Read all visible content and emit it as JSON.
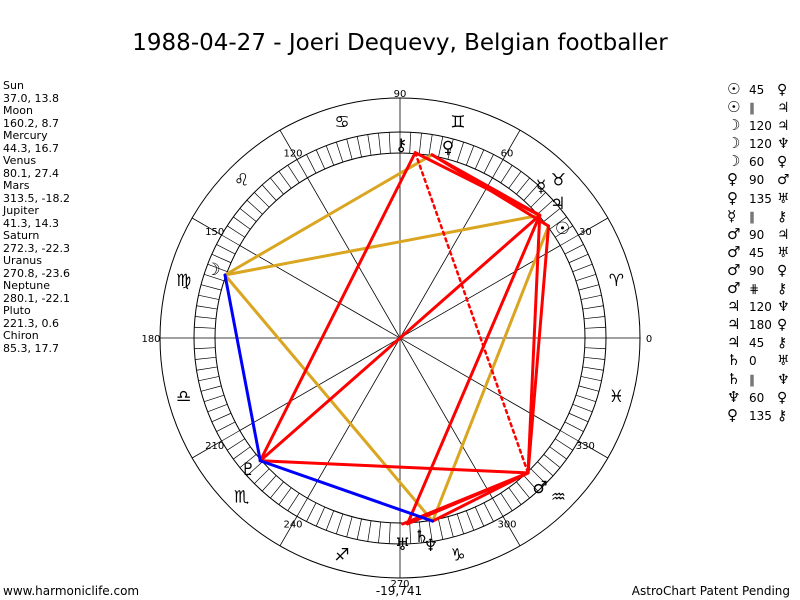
{
  "title": "1988-04-27 - Joeri Dequevy, Belgian footballer",
  "footer_left": "www.harmoniclife.com",
  "footer_right": "AstroChart Patent Pending",
  "planets": [
    {
      "name": "Sun",
      "coords": "37.0, 13.8",
      "lon": 37.0,
      "glyph": "☉"
    },
    {
      "name": "Moon",
      "coords": "160.2, 8.7",
      "lon": 160.2,
      "glyph": "☽"
    },
    {
      "name": "Mercury",
      "coords": "44.3, 16.7",
      "lon": 44.3,
      "glyph": "☿"
    },
    {
      "name": "Venus",
      "coords": "80.1, 27.4",
      "lon": 80.1,
      "glyph": "♀"
    },
    {
      "name": "Mars",
      "coords": "313.5, -18.2",
      "lon": 313.5,
      "glyph": "♂"
    },
    {
      "name": "Jupiter",
      "coords": "41.3, 14.3",
      "lon": 41.3,
      "glyph": "♃"
    },
    {
      "name": "Saturn",
      "coords": "272.3, -22.3",
      "lon": 272.3,
      "glyph": "♄"
    },
    {
      "name": "Uranus",
      "coords": "270.8, -23.6",
      "lon": 270.8,
      "glyph": "♅"
    },
    {
      "name": "Neptune",
      "coords": "280.1, -22.1",
      "lon": 280.1,
      "glyph": "♆"
    },
    {
      "name": "Pluto",
      "coords": "221.3, 0.6",
      "lon": 221.3,
      "glyph": "♇"
    },
    {
      "name": "Chiron",
      "coords": "85.3, 17.7",
      "lon": 85.3,
      "glyph": "⚷"
    }
  ],
  "aspects": [
    {
      "p1": "☉",
      "angle": "45",
      "p2": "♀"
    },
    {
      "p1": "☉",
      "angle": "∥",
      "p2": "♃"
    },
    {
      "p1": "☽",
      "angle": "120",
      "p2": "♃"
    },
    {
      "p1": "☽",
      "angle": "120",
      "p2": "♆"
    },
    {
      "p1": "☽",
      "angle": "60",
      "p2": "♀"
    },
    {
      "p1": "♀",
      "angle": "90",
      "p2": "♂"
    },
    {
      "p1": "♀",
      "angle": "135",
      "p2": "♅"
    },
    {
      "p1": "☿",
      "angle": "∥",
      "p2": "⚷"
    },
    {
      "p1": "♂",
      "angle": "90",
      "p2": "♃"
    },
    {
      "p1": "♂",
      "angle": "45",
      "p2": "♅"
    },
    {
      "p1": "♂",
      "angle": "90",
      "p2": "♀"
    },
    {
      "p1": "♂",
      "angle": "⋕",
      "p2": "⚷"
    },
    {
      "p1": "♃",
      "angle": "120",
      "p2": "♆"
    },
    {
      "p1": "♃",
      "angle": "180",
      "p2": "♀"
    },
    {
      "p1": "♃",
      "angle": "45",
      "p2": "⚷"
    },
    {
      "p1": "♄",
      "angle": "0",
      "p2": "♅"
    },
    {
      "p1": "♄",
      "angle": "∥",
      "p2": "♆"
    },
    {
      "p1": "♆",
      "angle": "60",
      "p2": "♀"
    },
    {
      "p1": "♀",
      "angle": "135",
      "p2": "⚷"
    }
  ],
  "degree_labels": [
    "0",
    "30",
    "60",
    "90",
    "120",
    "150",
    "180",
    "210",
    "240",
    "270",
    "300",
    "330"
  ],
  "bottom_label": "-19,741",
  "zodiac_signs": [
    "♈",
    "♉",
    "♊",
    "♋",
    "♌",
    "♍",
    "♎",
    "♏",
    "♐",
    "♑",
    "♒",
    "♓"
  ],
  "colors": {
    "red": "#ff0000",
    "gold": "#daa520",
    "blue": "#0000ff"
  },
  "diagram_lines": [
    {
      "from": "Venus",
      "to": "Moon",
      "color": "gold",
      "style": "solid"
    },
    {
      "from": "Moon",
      "to": "Jupiter",
      "color": "gold",
      "style": "solid"
    },
    {
      "from": "Sun",
      "to": "Neptune",
      "color": "gold",
      "style": "solid"
    },
    {
      "from": "Moon",
      "to": "Neptune",
      "color": "gold",
      "style": "solid"
    },
    {
      "from": "Chiron",
      "to": "Mars",
      "color": "red",
      "style": "dotted"
    },
    {
      "from": "Chiron",
      "to": "Pluto",
      "color": "red",
      "style": "solid"
    },
    {
      "from": "Venus",
      "to": "Jupiter",
      "color": "red",
      "style": "solid"
    },
    {
      "from": "Chiron",
      "to": "Jupiter",
      "color": "red",
      "style": "solid"
    },
    {
      "from": "Jupiter",
      "to": "Pluto",
      "color": "red",
      "style": "solid"
    },
    {
      "from": "Jupiter",
      "to": "Mars",
      "color": "red",
      "style": "solid"
    },
    {
      "from": "Sun",
      "to": "Mars",
      "color": "red",
      "style": "solid"
    },
    {
      "from": "Jupiter",
      "to": "Saturn",
      "color": "red",
      "style": "solid"
    },
    {
      "from": "Pluto",
      "to": "Mars",
      "color": "red",
      "style": "solid"
    },
    {
      "from": "Mars",
      "to": "Neptune",
      "color": "red",
      "style": "solid"
    },
    {
      "from": "Mars",
      "to": "Saturn",
      "color": "red",
      "style": "solid"
    },
    {
      "from": "Mars",
      "to": "Uranus",
      "color": "red",
      "style": "solid"
    },
    {
      "from": "Venus",
      "to": "Sun",
      "color": "red",
      "style": "solid"
    },
    {
      "from": "Pluto",
      "to": "Moon",
      "color": "blue",
      "style": "solid"
    },
    {
      "from": "Pluto",
      "to": "Neptune",
      "color": "blue",
      "style": "solid"
    }
  ]
}
